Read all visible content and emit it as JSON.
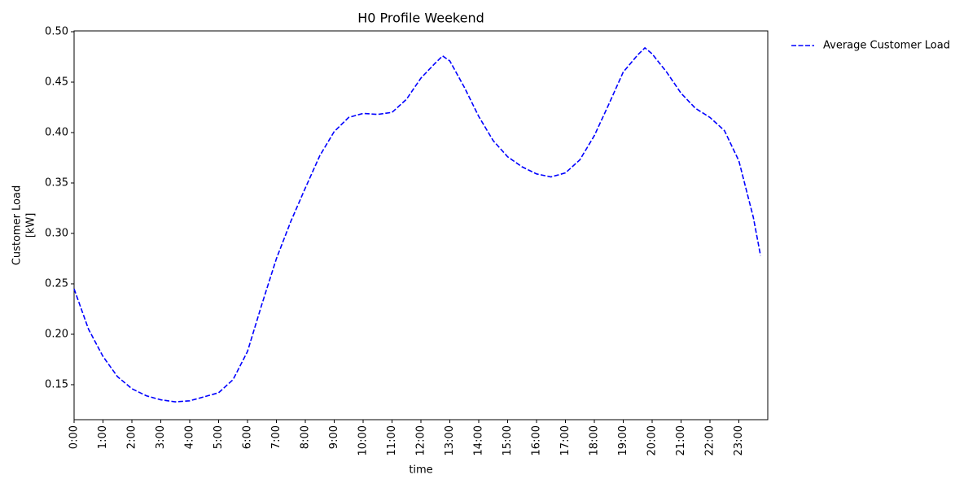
{
  "chart_data": {
    "type": "line",
    "title": "H0 Profile Weekend",
    "xlabel": "time",
    "ylabel": [
      "Customer Load",
      "[kW]"
    ],
    "x": [
      0,
      0.5,
      1,
      1.5,
      2,
      2.5,
      3,
      3.5,
      4,
      4.5,
      5,
      5.5,
      6,
      6.5,
      7,
      7.5,
      8,
      8.5,
      9,
      9.5,
      10,
      10.5,
      11,
      11.5,
      12,
      12.5,
      12.75,
      13,
      13.5,
      14,
      14.5,
      15,
      15.5,
      16,
      16.5,
      17,
      17.5,
      18,
      18.5,
      19,
      19.5,
      19.75,
      20,
      20.5,
      21,
      21.5,
      22,
      22.5,
      23,
      23.5,
      23.75
    ],
    "series": [
      {
        "name": "Average Customer Load",
        "color": "#0000ff",
        "dashed": true,
        "values": [
          0.245,
          0.205,
          0.178,
          0.158,
          0.146,
          0.139,
          0.135,
          0.133,
          0.134,
          0.138,
          0.142,
          0.155,
          0.183,
          0.23,
          0.275,
          0.312,
          0.345,
          0.377,
          0.401,
          0.415,
          0.419,
          0.418,
          0.42,
          0.433,
          0.454,
          0.469,
          0.476,
          0.471,
          0.445,
          0.416,
          0.392,
          0.376,
          0.366,
          0.359,
          0.356,
          0.36,
          0.373,
          0.397,
          0.428,
          0.46,
          0.477,
          0.484,
          0.478,
          0.46,
          0.439,
          0.424,
          0.415,
          0.402,
          0.372,
          0.316,
          0.278
        ]
      }
    ],
    "xlim": [
      0,
      24
    ],
    "ylim": [
      0.1153,
      0.5008
    ],
    "xticks": [
      {
        "value": 0,
        "label": "0:00"
      },
      {
        "value": 1,
        "label": "1:00"
      },
      {
        "value": 2,
        "label": "2:00"
      },
      {
        "value": 3,
        "label": "3:00"
      },
      {
        "value": 4,
        "label": "4:00"
      },
      {
        "value": 5,
        "label": "5:00"
      },
      {
        "value": 6,
        "label": "6:00"
      },
      {
        "value": 7,
        "label": "7:00"
      },
      {
        "value": 8,
        "label": "8:00"
      },
      {
        "value": 9,
        "label": "9:00"
      },
      {
        "value": 10,
        "label": "10:00"
      },
      {
        "value": 11,
        "label": "11:00"
      },
      {
        "value": 12,
        "label": "12:00"
      },
      {
        "value": 13,
        "label": "13:00"
      },
      {
        "value": 14,
        "label": "14:00"
      },
      {
        "value": 15,
        "label": "15:00"
      },
      {
        "value": 16,
        "label": "16:00"
      },
      {
        "value": 17,
        "label": "17:00"
      },
      {
        "value": 18,
        "label": "18:00"
      },
      {
        "value": 19,
        "label": "19:00"
      },
      {
        "value": 20,
        "label": "20:00"
      },
      {
        "value": 21,
        "label": "21:00"
      },
      {
        "value": 22,
        "label": "22:00"
      },
      {
        "value": 23,
        "label": "23:00"
      }
    ],
    "yticks": [
      {
        "value": 0.15,
        "label": "0.15"
      },
      {
        "value": 0.2,
        "label": "0.20"
      },
      {
        "value": 0.25,
        "label": "0.25"
      },
      {
        "value": 0.3,
        "label": "0.30"
      },
      {
        "value": 0.35,
        "label": "0.35"
      },
      {
        "value": 0.4,
        "label": "0.40"
      },
      {
        "value": 0.45,
        "label": "0.45"
      },
      {
        "value": 0.5,
        "label": "0.50"
      }
    ],
    "grid": false,
    "legend": "outside-upper-right"
  }
}
